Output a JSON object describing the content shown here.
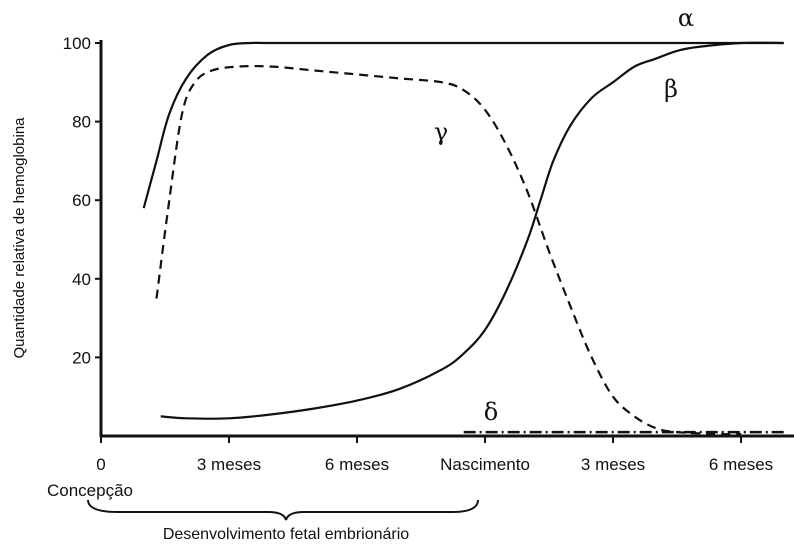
{
  "chart_data": {
    "type": "line",
    "title": "",
    "xlabel": "",
    "ylabel": "Quantidade relativa de hemoglobina",
    "x_unit": "meses",
    "xlim": [
      0,
      14
    ],
    "ylim": [
      0,
      100
    ],
    "y_ticks": [
      20,
      40,
      60,
      80,
      100
    ],
    "x_ticks": [
      {
        "x": 0,
        "label": "0"
      },
      {
        "x": 3,
        "label": "3 meses"
      },
      {
        "x": 6,
        "label": "6 meses"
      },
      {
        "x": 9,
        "label": "Nascimento"
      },
      {
        "x": 12,
        "label": "3 meses"
      },
      {
        "x": 15,
        "label": "6 meses"
      }
    ],
    "under_axis_label": "Concepção",
    "brace_label": "Desenvolvimento fetal embrionário",
    "brace_range": [
      0,
      9
    ],
    "grid": false,
    "legend": "none",
    "series": [
      {
        "name": "α",
        "style": "solid",
        "x": [
          1.0,
          1.3,
          1.6,
          2.0,
          2.5,
          3.0,
          3.5,
          4.0,
          6.0,
          9.0,
          12.0,
          14.0,
          16.0
        ],
        "y": [
          58,
          70,
          82,
          91,
          97,
          99.5,
          100,
          100,
          100,
          100,
          100,
          100,
          100
        ]
      },
      {
        "name": "γ",
        "style": "dashed",
        "x": [
          1.3,
          1.6,
          1.9,
          2.2,
          2.6,
          3.2,
          4.0,
          5.0,
          6.0,
          7.0,
          8.0,
          8.5,
          9.0,
          9.5,
          10.0,
          10.5,
          11.0,
          11.5,
          12.0,
          12.5,
          13.0,
          13.5,
          14.5,
          15.0
        ],
        "y": [
          35,
          60,
          82,
          90,
          93,
          94,
          94,
          93,
          92,
          91,
          90,
          88,
          83,
          74,
          62,
          47,
          33,
          20,
          10,
          5,
          2,
          1,
          0.5,
          0.5
        ]
      },
      {
        "name": "β",
        "style": "solid",
        "x": [
          1.4,
          2.0,
          3.0,
          4.0,
          5.0,
          6.0,
          7.0,
          8.0,
          8.5,
          9.0,
          9.5,
          10.0,
          10.3,
          10.6,
          11.0,
          11.5,
          12.0,
          12.5,
          13.0,
          13.5,
          14.0,
          15.0,
          16.0
        ],
        "y": [
          5,
          4.5,
          4.5,
          5.5,
          7,
          9,
          12,
          17,
          21,
          27,
          37,
          50,
          60,
          70,
          79,
          86,
          90,
          94,
          96,
          98,
          99,
          100,
          100
        ]
      },
      {
        "name": "δ",
        "style": "dashdot",
        "x": [
          8.5,
          16.0
        ],
        "y": [
          1,
          1
        ]
      }
    ]
  }
}
